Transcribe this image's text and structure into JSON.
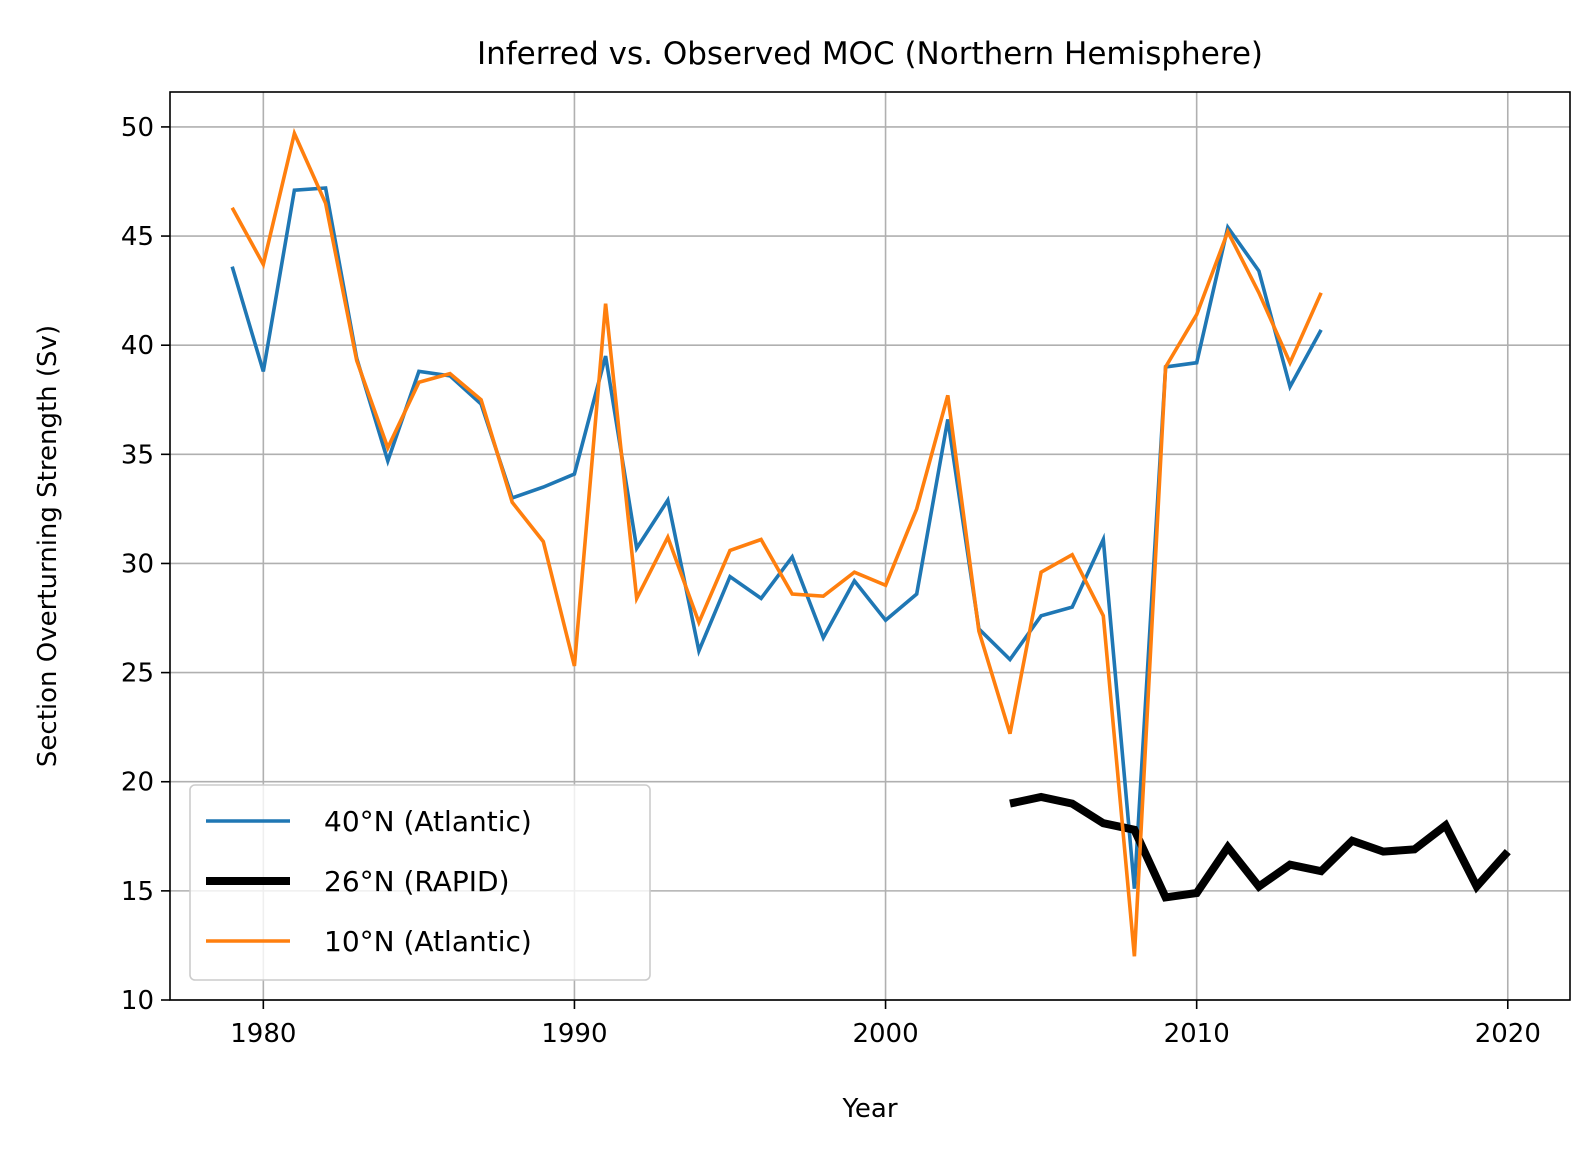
{
  "chart_data": {
    "type": "line",
    "title": "Inferred vs. Observed MOC (Northern Hemisphere)",
    "xlabel": "Year",
    "ylabel": "Section Overturning Strength (Sv)",
    "xlim": [
      1977,
      2022
    ],
    "ylim": [
      10,
      51.6
    ],
    "xticks": [
      1980,
      1990,
      2000,
      2010,
      2020
    ],
    "yticks": [
      10,
      15,
      20,
      25,
      30,
      35,
      40,
      45,
      50
    ],
    "grid": true,
    "legend_position": "lower-left",
    "series": [
      {
        "name": "40°N (Atlantic)",
        "color": "#1f77b4",
        "x": [
          1979,
          1980,
          1981,
          1982,
          1983,
          1984,
          1985,
          1986,
          1987,
          1988,
          1989,
          1990,
          1991,
          1992,
          1993,
          1994,
          1995,
          1996,
          1997,
          1998,
          1999,
          2000,
          2001,
          2002,
          2003,
          2004,
          2005,
          2006,
          2007,
          2008,
          2009,
          2010,
          2011,
          2012,
          2013,
          2014
        ],
        "values": [
          43.6,
          38.8,
          47.1,
          47.2,
          39.4,
          34.7,
          38.8,
          38.6,
          37.3,
          33.0,
          33.5,
          34.1,
          39.5,
          30.7,
          32.9,
          26.0,
          29.4,
          28.4,
          30.3,
          26.6,
          29.2,
          27.4,
          28.6,
          36.6,
          27.0,
          25.6,
          27.6,
          28.0,
          31.1,
          15.1,
          39.0,
          39.2,
          45.4,
          43.4,
          38.1,
          40.7
        ]
      },
      {
        "name": "26°N (RAPID)",
        "color": "#000000",
        "x": [
          2004,
          2005,
          2006,
          2007,
          2008,
          2009,
          2010,
          2011,
          2012,
          2013,
          2014,
          2015,
          2016,
          2017,
          2018,
          2019,
          2020
        ],
        "values": [
          19.0,
          19.3,
          19.0,
          18.1,
          17.8,
          14.7,
          14.9,
          17.0,
          15.2,
          16.2,
          15.9,
          17.3,
          16.8,
          16.9,
          18.0,
          15.2,
          16.8
        ]
      },
      {
        "name": "10°N (Atlantic)",
        "color": "#ff7f0e",
        "x": [
          1979,
          1980,
          1981,
          1982,
          1983,
          1984,
          1985,
          1986,
          1987,
          1988,
          1989,
          1990,
          1991,
          1992,
          1993,
          1994,
          1995,
          1996,
          1997,
          1998,
          1999,
          2000,
          2001,
          2002,
          2003,
          2004,
          2005,
          2006,
          2007,
          2008,
          2009,
          2010,
          2011,
          2012,
          2013,
          2014
        ],
        "values": [
          46.3,
          43.7,
          49.7,
          46.5,
          39.3,
          35.3,
          38.3,
          38.7,
          37.5,
          32.8,
          31.0,
          25.3,
          41.9,
          28.4,
          31.2,
          27.3,
          30.6,
          31.1,
          28.6,
          28.5,
          29.6,
          29.0,
          32.5,
          37.7,
          26.9,
          22.2,
          29.6,
          30.4,
          27.6,
          12.0,
          39.0,
          41.4,
          45.2,
          42.4,
          39.2,
          42.4
        ]
      }
    ]
  }
}
